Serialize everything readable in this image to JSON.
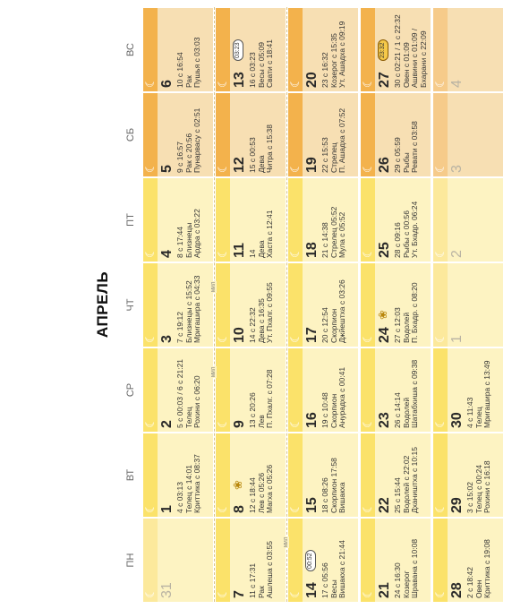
{
  "title": "АПРЕЛЬ",
  "weekdays": [
    "ПН",
    "ВТ",
    "СР",
    "ЧТ",
    "ПТ",
    "СБ",
    "ВС"
  ],
  "colors": {
    "weekday_band": "#fbe26a",
    "weekend_band": "#f3b24c",
    "weekday_bg": "#fdf3c2",
    "weekend_bg": "#f7dfb3"
  },
  "week_separator_note": "МИЛ",
  "cells": [
    {
      "day": "31",
      "dim": true,
      "lines": []
    },
    {
      "day": "1",
      "lines": [
        "4 с 03:13",
        "Телец с 14:01",
        "Криттика с 08:37"
      ]
    },
    {
      "day": "2",
      "lines": [
        "5 с 00:03 / 6 с 21:21",
        "Телец",
        "Рохини с 06:20"
      ]
    },
    {
      "day": "3",
      "lines": [
        "7 с 19:12",
        "Близнецы с 15:52",
        "Мригашира с 04:33"
      ]
    },
    {
      "day": "4",
      "lines": [
        "8 с 17:44",
        "Близнецы",
        "Ардра с 03:22"
      ]
    },
    {
      "day": "5",
      "lines": [
        "9 с 16:57",
        "Рак с 20:56",
        "Пунарвасу с 02:51"
      ]
    },
    {
      "day": "6",
      "lines": [
        "10 с 16:54",
        "Рак",
        "Пушья с 03:03"
      ]
    },
    {
      "day": "7",
      "lines": [
        "11 с 17:31",
        "Рак",
        "Ашлеша с 03:55"
      ]
    },
    {
      "day": "8",
      "lines": [
        "12 с 18:44",
        "Лев с 05:26",
        "Магха с 05:26"
      ]
    },
    {
      "day": "9",
      "lines": [
        "13 с 20:26",
        "Лев",
        "П. Пхалг. с 07:28"
      ]
    },
    {
      "day": "10",
      "lines": [
        "14 с 22:32",
        "Дева с 16:35",
        "Ут. Пхалг. с 09:55"
      ]
    },
    {
      "day": "11",
      "lines": [
        "14",
        "Дева",
        "Хаста с 12:41"
      ]
    },
    {
      "day": "12",
      "lines": [
        "15 с 00:53",
        "Дева",
        "Читра с 15:38"
      ]
    },
    {
      "day": "13",
      "lines": [
        "16 с 03:23",
        "Весы с 05:09",
        "Свати с 18:41"
      ]
    },
    {
      "day": "14",
      "lines": [
        "17 с 05:56",
        "Весы",
        "Вишакха с 21:44"
      ]
    },
    {
      "day": "15",
      "lines": [
        "18 с 08:26",
        "Скорпион 17:58",
        "Вишакха"
      ]
    },
    {
      "day": "16",
      "lines": [
        "19 с 10:48",
        "Скорпион",
        "Анурадха с 00:41"
      ]
    },
    {
      "day": "17",
      "lines": [
        "20 с 12:54",
        "Скорпион",
        "Джйештха с 03:26"
      ]
    },
    {
      "day": "18",
      "lines": [
        "21 с 14:38",
        "Стрелец 05:52",
        "Мула с 05:52"
      ]
    },
    {
      "day": "19",
      "lines": [
        "22 с 15:53",
        "Стрелец",
        "П. Ашадха с 07:52"
      ]
    },
    {
      "day": "20",
      "lines": [
        "23 с 16:32",
        "Козерог с 15:35",
        "Ут. Ашадха с 09:19"
      ]
    },
    {
      "day": "21",
      "lines": [
        "24 с 16:30",
        "Козерог",
        "Шравана с 10:08"
      ]
    },
    {
      "day": "22",
      "lines": [
        "25 с 15:44",
        "Водолей с 22:02",
        "Дхаништха с 10:15"
      ]
    },
    {
      "day": "23",
      "lines": [
        "26 с 14:14",
        "Водолей",
        "Шатабхиша с 09:38"
      ]
    },
    {
      "day": "24",
      "lines": [
        "27 с 12:03",
        "Водолей",
        "П. Бхадр. с 08:20"
      ]
    },
    {
      "day": "25",
      "lines": [
        "28 с 09:16",
        "Рыбы с 00:56",
        "Ут. Бхадр. 06:24"
      ]
    },
    {
      "day": "26",
      "lines": [
        "29 с 05:59",
        "Рыбы",
        "Ревати с 03:58"
      ]
    },
    {
      "day": "27",
      "lines": [
        "30 с 02:21 / 1 с 22:32",
        "Овен с 01:09",
        "Ашвини с 01:09 /",
        "Бхарани с 22:09"
      ]
    },
    {
      "day": "28",
      "lines": [
        "2 с 18:42",
        "Овен",
        "Криттика с 19:08"
      ]
    },
    {
      "day": "29",
      "lines": [
        "3 с 15:02",
        "Телец с 00:24",
        "Рохини с 16:18"
      ]
    },
    {
      "day": "30",
      "lines": [
        "4 с 11:43",
        "Телец",
        "Мригашира с 13:49"
      ]
    },
    {
      "day": "1",
      "dim": true,
      "lines": []
    },
    {
      "day": "2",
      "dim": true,
      "lines": []
    },
    {
      "day": "3",
      "dim": true,
      "lines": []
    },
    {
      "day": "4",
      "dim": true,
      "lines": []
    }
  ],
  "badges": [
    {
      "cell": 13,
      "text": "03:23"
    },
    {
      "cell": 14,
      "text": "00:52"
    },
    {
      "cell": 27,
      "text": "23:32"
    }
  ],
  "lotus_icons": [
    8,
    24
  ]
}
